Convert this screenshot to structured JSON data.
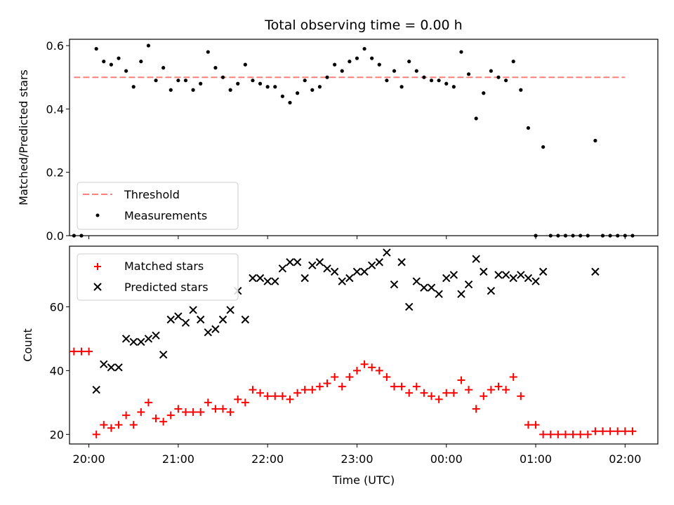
{
  "chart_data": [
    {
      "type": "scatter",
      "title": "Total observing time = 0.00 h",
      "xlabel": "",
      "ylabel": "Matched/Predicted stars",
      "ylim": [
        0,
        0.62
      ],
      "yticks": [
        "0.0",
        "0.2",
        "0.4",
        "0.6"
      ],
      "xlim": [
        "19:47",
        "02:22"
      ],
      "xticks_shown": false,
      "legend": {
        "placement": "lower-left",
        "entries": [
          "Threshold",
          "Measurements"
        ]
      },
      "series": [
        {
          "name": "Threshold",
          "kind": "dashed-line",
          "color": "#ff7f7f",
          "x": [
            "19:50",
            "02:00"
          ],
          "y": [
            0.5,
            0.5
          ]
        },
        {
          "name": "Measurements",
          "kind": "points",
          "color": "#000000",
          "x": [
            "19:50",
            "19:55",
            "20:05",
            "20:10",
            "20:15",
            "20:20",
            "20:25",
            "20:30",
            "20:35",
            "20:40",
            "20:45",
            "20:50",
            "20:55",
            "21:00",
            "21:05",
            "21:10",
            "21:15",
            "21:20",
            "21:25",
            "21:30",
            "21:35",
            "21:40",
            "21:45",
            "21:50",
            "21:55",
            "22:00",
            "22:05",
            "22:10",
            "22:15",
            "22:20",
            "22:25",
            "22:30",
            "22:35",
            "22:40",
            "22:45",
            "22:50",
            "22:55",
            "23:00",
            "23:05",
            "23:10",
            "23:15",
            "23:20",
            "23:25",
            "23:30",
            "23:35",
            "23:40",
            "23:45",
            "23:50",
            "23:55",
            "00:00",
            "00:05",
            "00:10",
            "00:15",
            "00:20",
            "00:25",
            "00:30",
            "00:35",
            "00:40",
            "00:45",
            "00:50",
            "00:55",
            "01:00",
            "01:05",
            "01:10",
            "01:15",
            "01:20",
            "01:25",
            "01:30",
            "01:35",
            "01:40",
            "01:45",
            "01:50",
            "01:55",
            "02:00",
            "02:05"
          ],
          "y": [
            0,
            0,
            0.59,
            0.55,
            0.54,
            0.56,
            0.52,
            0.47,
            0.55,
            0.6,
            0.49,
            0.53,
            0.46,
            0.49,
            0.49,
            0.46,
            0.48,
            0.58,
            0.53,
            0.5,
            0.46,
            0.48,
            0.54,
            0.49,
            0.48,
            0.47,
            0.47,
            0.44,
            0.42,
            0.45,
            0.49,
            0.46,
            0.47,
            0.5,
            0.54,
            0.52,
            0.55,
            0.56,
            0.59,
            0.56,
            0.54,
            0.49,
            0.52,
            0.47,
            0.55,
            0.52,
            0.5,
            0.49,
            0.49,
            0.48,
            0.47,
            0.58,
            0.51,
            0.37,
            0.45,
            0.52,
            0.5,
            0.49,
            0.55,
            0.46,
            0.34,
            0,
            0.28,
            0,
            0,
            0,
            0,
            0,
            0,
            0.3,
            0,
            0,
            0,
            0,
            0
          ]
        }
      ]
    },
    {
      "type": "scatter",
      "title": "",
      "xlabel": "Time (UTC)",
      "ylabel": "Count",
      "ylim": [
        17,
        79
      ],
      "yticks": [
        "20",
        "40",
        "60"
      ],
      "xlim": [
        "19:47",
        "02:22"
      ],
      "xticks": [
        "20:00",
        "21:00",
        "22:00",
        "23:00",
        "00:00",
        "01:00",
        "02:00"
      ],
      "legend": {
        "placement": "upper-left",
        "entries": [
          "Matched stars",
          "Predicted stars"
        ]
      },
      "series": [
        {
          "name": "Matched stars",
          "marker": "+",
          "color": "#ff0000",
          "x": [
            "19:50",
            "19:55",
            "20:00",
            "20:05",
            "20:10",
            "20:15",
            "20:20",
            "20:25",
            "20:30",
            "20:35",
            "20:40",
            "20:45",
            "20:50",
            "20:55",
            "21:00",
            "21:05",
            "21:10",
            "21:15",
            "21:20",
            "21:25",
            "21:30",
            "21:35",
            "21:40",
            "21:45",
            "21:50",
            "21:55",
            "22:00",
            "22:05",
            "22:10",
            "22:15",
            "22:20",
            "22:25",
            "22:30",
            "22:35",
            "22:40",
            "22:45",
            "22:50",
            "22:55",
            "23:00",
            "23:05",
            "23:10",
            "23:15",
            "23:20",
            "23:25",
            "23:30",
            "23:35",
            "23:40",
            "23:45",
            "23:50",
            "23:55",
            "00:00",
            "00:05",
            "00:10",
            "00:15",
            "00:20",
            "00:25",
            "00:30",
            "00:35",
            "00:40",
            "00:45",
            "00:50",
            "00:55",
            "01:00",
            "01:05",
            "01:10",
            "01:15",
            "01:20",
            "01:25",
            "01:30",
            "01:35",
            "01:40",
            "01:45",
            "01:50",
            "01:55",
            "02:00",
            "02:05"
          ],
          "y": [
            46,
            46,
            46,
            20,
            23,
            22,
            23,
            26,
            23,
            27,
            30,
            25,
            24,
            26,
            28,
            27,
            27,
            27,
            30,
            28,
            28,
            27,
            31,
            30,
            34,
            33,
            32,
            32,
            32,
            31,
            33,
            34,
            34,
            35,
            36,
            38,
            35,
            38,
            40,
            42,
            41,
            40,
            38,
            35,
            35,
            33,
            35,
            33,
            32,
            31,
            33,
            33,
            37,
            34,
            28,
            32,
            34,
            35,
            34,
            38,
            32,
            23,
            23,
            20,
            20,
            20,
            20,
            20,
            20,
            20,
            21,
            21,
            21,
            21,
            21,
            21
          ]
        },
        {
          "name": "Predicted stars",
          "marker": "x",
          "color": "#000000",
          "x": [
            "20:05",
            "20:10",
            "20:15",
            "20:20",
            "20:25",
            "20:30",
            "20:35",
            "20:40",
            "20:45",
            "20:50",
            "20:55",
            "21:00",
            "21:05",
            "21:10",
            "21:15",
            "21:20",
            "21:25",
            "21:30",
            "21:35",
            "21:40",
            "21:45",
            "21:50",
            "21:55",
            "22:00",
            "22:05",
            "22:10",
            "22:15",
            "22:20",
            "22:25",
            "22:30",
            "22:35",
            "22:40",
            "22:45",
            "22:50",
            "22:55",
            "23:00",
            "23:05",
            "23:10",
            "23:15",
            "23:20",
            "23:25",
            "23:30",
            "23:35",
            "23:40",
            "23:45",
            "23:50",
            "23:55",
            "00:00",
            "00:05",
            "00:10",
            "00:15",
            "00:20",
            "00:25",
            "00:30",
            "00:35",
            "00:40",
            "00:45",
            "00:50",
            "00:55",
            "01:00",
            "01:05",
            "01:40"
          ],
          "y": [
            34,
            42,
            41,
            41,
            50,
            49,
            49,
            50,
            51,
            45,
            56,
            57,
            55,
            59,
            56,
            52,
            53,
            56,
            59,
            65,
            56,
            69,
            69,
            68,
            68,
            72,
            74,
            74,
            69,
            73,
            74,
            72,
            71,
            68,
            69,
            71,
            71,
            73,
            74,
            77,
            67,
            74,
            60,
            68,
            66,
            66,
            64,
            69,
            70,
            64,
            67,
            75,
            71,
            65,
            70,
            70,
            69,
            70,
            69,
            68,
            71,
            71
          ]
        }
      ]
    }
  ]
}
